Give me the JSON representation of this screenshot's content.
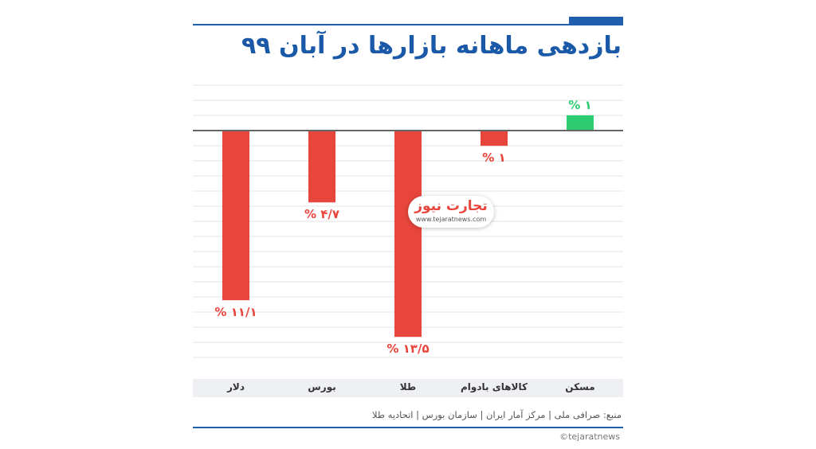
{
  "title": "بازدهی ماهانه بازارها در آبان ۹۹",
  "chart_data": {
    "type": "bar",
    "categories": [
      "دلار",
      "بورس",
      "طلا",
      "کالاهای بادوام",
      "مسکن"
    ],
    "values": [
      -11.1,
      -4.7,
      -13.5,
      -1,
      1
    ],
    "value_labels": [
      "۱۱/۱ %",
      "۴/۷ %",
      "۱۳/۵ %",
      "۱ %",
      "۱ %"
    ],
    "ylim": [
      -15,
      3
    ],
    "grid": true,
    "colors": {
      "negative": "#e8453c",
      "positive": "#2ecc71",
      "zero_line": "#666666"
    }
  },
  "source": "منبع: صرافی ملی | مرکز آمار ایران | سازمان بورس | اتحادیه طلا",
  "credit": "©tejaratnews",
  "logo": {
    "word": "تجارت نیوز",
    "url": "www.tejaratnews.com"
  }
}
